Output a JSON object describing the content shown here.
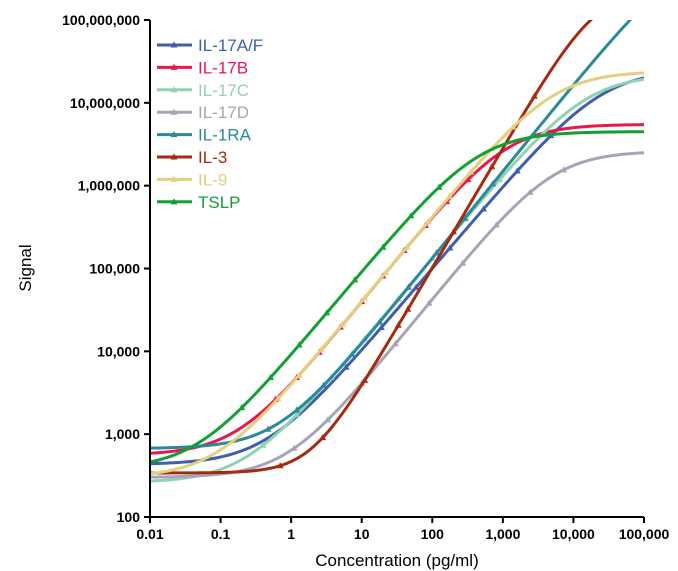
{
  "chart_data": {
    "type": "line",
    "title": "",
    "xlabel": "Concentration (pg/ml)",
    "ylabel": "Signal",
    "x_scale": "log",
    "y_scale": "log",
    "xlim": [
      0.01,
      100000
    ],
    "ylim": [
      100,
      100000000
    ],
    "x_ticks": [
      0.01,
      0.1,
      1,
      10,
      100,
      1000,
      10000,
      100000
    ],
    "x_tick_labels": [
      "0.01",
      "0.1",
      "1",
      "10",
      "100",
      "1,000",
      "10,000",
      "100,000"
    ],
    "y_ticks": [
      100,
      1000,
      10000,
      100000,
      1000000,
      10000000,
      100000000
    ],
    "y_tick_labels": [
      "100",
      "1,000",
      "10,000",
      "100,000",
      "1,000,000",
      "10,000,000",
      "100,000,000"
    ],
    "grid": false,
    "legend": "top-left",
    "marker": "triangle",
    "series": [
      {
        "name": "IL-17A/F",
        "color": "#3f5fae",
        "curve": {
          "bottom": 430,
          "top": 25000000,
          "ec50": 25000,
          "hill": 1.0
        },
        "markers_x": [
          6,
          19,
          59,
          178,
          533,
          1600,
          4800
        ]
      },
      {
        "name": "IL-17B",
        "color": "#e8174f",
        "curve": {
          "bottom": 560,
          "top": 5500000,
          "ec50": 1100,
          "hill": 1.05
        },
        "markers_x": [
          0.6,
          1.2,
          2.5,
          5,
          10,
          20,
          40,
          80,
          160,
          320
        ]
      },
      {
        "name": "IL-17C",
        "color": "#8fd3b0",
        "curve": {
          "bottom": 260,
          "top": 22000000,
          "ec50": 15000,
          "hill": 1.02
        },
        "markers_x": [
          0.4,
          1.2,
          3.7,
          11,
          33,
          100,
          300,
          900
        ]
      },
      {
        "name": "IL-17D",
        "color": "#a7a4b8",
        "curve": {
          "bottom": 300,
          "top": 2600000,
          "ec50": 5000,
          "hill": 1.05
        },
        "markers_x": [
          1.1,
          3.3,
          10,
          30,
          90,
          270,
          810,
          2430,
          7290
        ]
      },
      {
        "name": "IL-1RA",
        "color": "#2b8a9a",
        "curve": {
          "bottom": 670,
          "top": 700000000,
          "ec50": 350000,
          "hill": 1.05
        },
        "markers_x": [
          0.47,
          1.2,
          2.9,
          7.3,
          18,
          46,
          115,
          288,
          720
        ]
      },
      {
        "name": "IL-3",
        "color": "#a52a0f",
        "curve": {
          "bottom": 340,
          "top": 220000000,
          "ec50": 20000,
          "hill": 1.45
        },
        "markers_x": [
          0.7,
          2.8,
          11,
          33,
          45,
          200,
          700,
          2800
        ]
      },
      {
        "name": "IL-9",
        "color": "#e4cf7e",
        "curve": {
          "bottom": 300,
          "top": 24000000,
          "ec50": 5000,
          "hill": 1.03
        },
        "markers_x": [
          0.65,
          1.3,
          2.7,
          5.4,
          11,
          22,
          44,
          88,
          175,
          350,
          700,
          1400
        ]
      },
      {
        "name": "TSLP",
        "color": "#12a033",
        "curve": {
          "bottom": 380,
          "top": 4500000,
          "ec50": 450,
          "hill": 1.02
        },
        "markers_x": [
          0.2,
          0.51,
          1.3,
          3.2,
          8,
          20,
          50,
          125
        ]
      }
    ]
  }
}
